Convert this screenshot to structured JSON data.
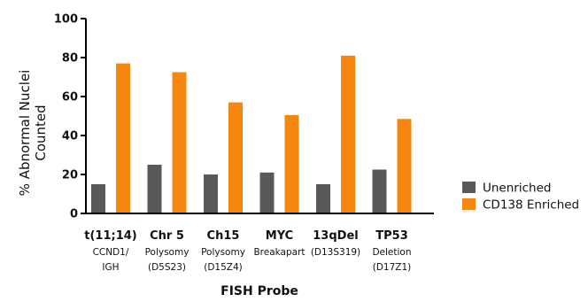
{
  "chart_data": {
    "type": "bar",
    "title": "",
    "xlabel": "FISH Probe",
    "ylabel_lines": [
      "% Abnormal Nuclei",
      "Counted"
    ],
    "ylim": [
      0,
      100
    ],
    "yticks": [
      0,
      20,
      40,
      60,
      80,
      100
    ],
    "grid": false,
    "legend_position": "right",
    "categories": [
      {
        "label": "t(11;14)",
        "sub": [
          "CCND1/",
          "IGH"
        ]
      },
      {
        "label": "Chr 5",
        "sub": [
          "Polysomy",
          "(D5S23)"
        ]
      },
      {
        "label": "Ch15",
        "sub": [
          "Polysomy",
          "(D15Z4)"
        ]
      },
      {
        "label": "MYC",
        "sub": [
          "Breakapart"
        ]
      },
      {
        "label": "13qDel",
        "sub": [
          "(D13S319)"
        ]
      },
      {
        "label": "TP53",
        "sub": [
          "Deletion",
          "(D17Z1)"
        ]
      }
    ],
    "series": [
      {
        "name": "Unenriched",
        "color": "#595959",
        "values": [
          15,
          25,
          20,
          21,
          15,
          22.5
        ]
      },
      {
        "name": "CD138 Enriched",
        "color": "#f5870f",
        "values": [
          77,
          72.5,
          57,
          50.5,
          81,
          48.5
        ]
      }
    ]
  }
}
